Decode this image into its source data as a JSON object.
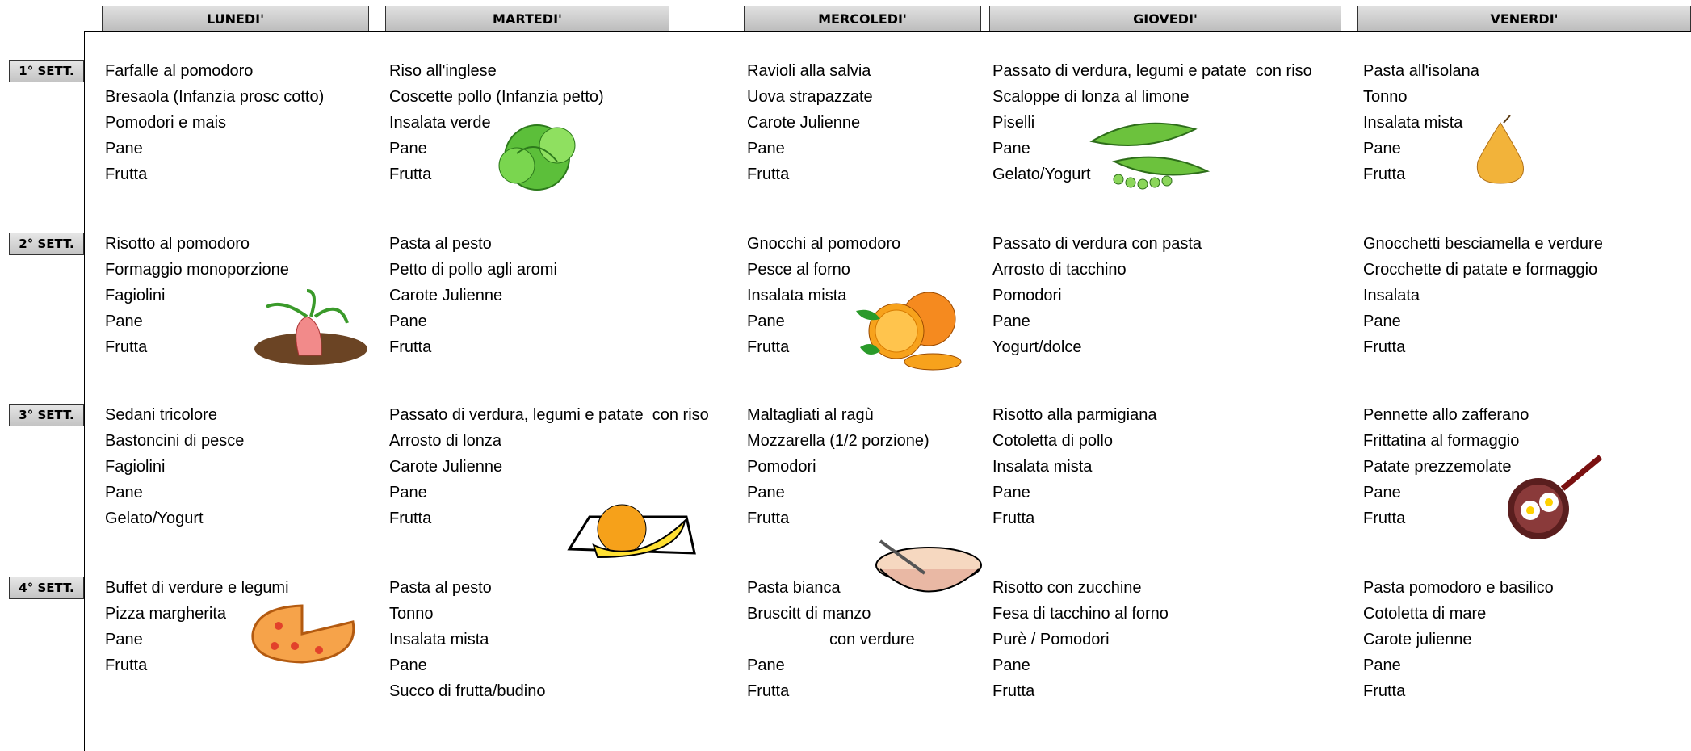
{
  "header": {
    "days": [
      "LUNEDI'",
      "MARTEDI'",
      "MERCOLEDI'",
      "GIOVEDI'",
      "VENERDI'"
    ]
  },
  "weeks": [
    {
      "label": "1° SETT.",
      "days": [
        [
          "Farfalle al pomodoro",
          "Bresaola (Infanzia prosc cotto)",
          "Pomodori e mais",
          "Pane",
          "Frutta"
        ],
        [
          "Riso all'inglese",
          "Coscette pollo (Infanzia petto)",
          "Insalata verde",
          "Pane",
          "Frutta"
        ],
        [
          "Ravioli alla salvia",
          "Uova strapazzate",
          "Carote Julienne",
          "Pane",
          "Frutta"
        ],
        [
          "Passato di verdura, legumi e patate  con riso",
          "Scaloppe di lonza al limone",
          "Piselli",
          "Pane",
          "Gelato/Yogurt"
        ],
        [
          "Pasta all'isolana",
          "Tonno",
          "Insalata mista",
          "Pane",
          "Frutta"
        ]
      ]
    },
    {
      "label": "2° SETT.",
      "days": [
        [
          "Risotto al pomodoro",
          "Formaggio monoporzione",
          "Fagiolini",
          "Pane",
          "Frutta"
        ],
        [
          "Pasta al pesto",
          "Petto di pollo agli aromi",
          "Carote Julienne",
          "Pane",
          "Frutta"
        ],
        [
          "Gnocchi al pomodoro",
          "Pesce al forno",
          "Insalata mista",
          "Pane",
          "Frutta"
        ],
        [
          "Passato di verdura con pasta",
          "Arrosto di tacchino",
          "Pomodori",
          "Pane",
          "Yogurt/dolce"
        ],
        [
          "Gnocchetti besciamella e verdure",
          "Crocchette di patate e formaggio",
          "Insalata",
          "Pane",
          "Frutta"
        ]
      ]
    },
    {
      "label": "3° SETT.",
      "days": [
        [
          "Sedani tricolore",
          "Bastoncini di pesce",
          "Fagiolini",
          "Pane",
          "Gelato/Yogurt"
        ],
        [
          "Passato di verdura, legumi e patate  con riso",
          "Arrosto di lonza",
          "Carote Julienne",
          "Pane",
          "Frutta"
        ],
        [
          "Maltagliati al ragù",
          "Mozzarella (1/2 porzione)",
          "Pomodori",
          "Pane",
          "Frutta"
        ],
        [
          "Risotto alla parmigiana",
          "Cotoletta di pollo",
          "Insalata mista",
          "Pane",
          "Frutta"
        ],
        [
          "Pennette allo zafferano",
          "Frittatina al formaggio",
          "Patate prezzemolate",
          "Pane",
          "Frutta"
        ]
      ]
    },
    {
      "label": "4° SETT.",
      "days": [
        [
          "Buffet di verdure e legumi",
          "Pizza margherita",
          "Pane",
          "Frutta"
        ],
        [
          "Pasta al pesto",
          "Tonno",
          "Insalata mista",
          "Pane",
          "Succo di frutta/budino"
        ],
        [
          "Pasta bianca",
          "Bruscitt di manzo",
          "con verdure",
          "Pane",
          "Frutta"
        ],
        [
          "Risotto con zucchine",
          "Fesa di tacchino al forno",
          "Purè / Pomodori",
          "Pane",
          "Frutta"
        ],
        [
          "Pasta pomodoro e basilico",
          "Cotoletta di mare",
          "Carote julienne",
          "Pane",
          "Frutta"
        ]
      ]
    }
  ]
}
